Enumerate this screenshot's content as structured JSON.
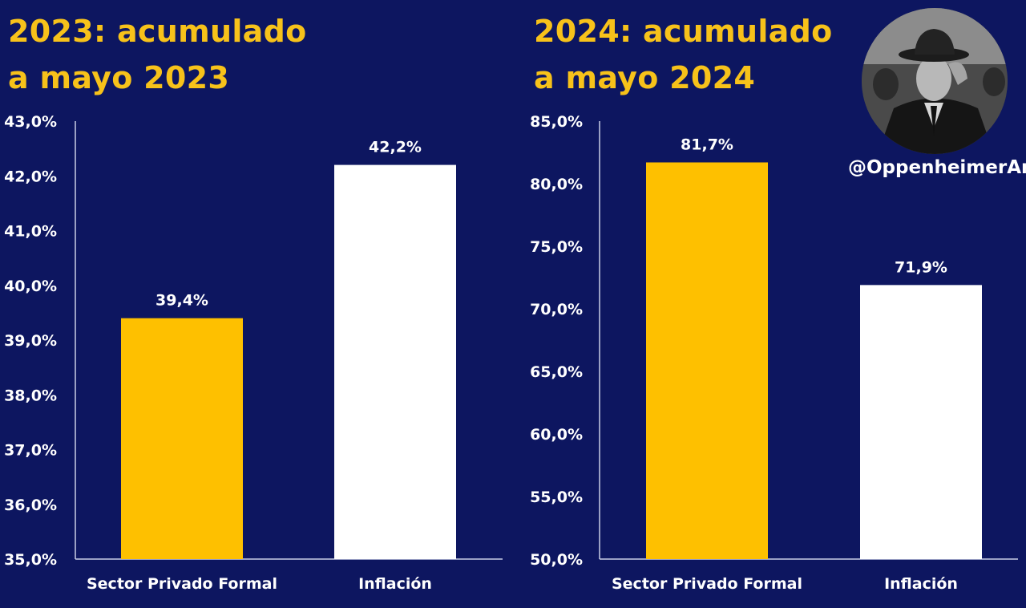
{
  "handle": "@OppenheimerAr",
  "colors": {
    "background": "#0d1660",
    "title": "#f7c21a",
    "bar_private": "#fec000",
    "bar_inflation": "#ffffff",
    "text": "#ffffff"
  },
  "chart_data": [
    {
      "type": "bar",
      "title": "2023: acumulado a mayo 2023",
      "title_lines": [
        "2023: acumulado",
        "a mayo 2023"
      ],
      "categories": [
        "Sector Privado Formal",
        "Inflación"
      ],
      "values": [
        39.4,
        42.2
      ],
      "value_labels": [
        "39,4%",
        "42,2%"
      ],
      "ylim": [
        35.0,
        43.0
      ],
      "yticks": [
        35.0,
        36.0,
        37.0,
        38.0,
        39.0,
        40.0,
        41.0,
        42.0,
        43.0
      ],
      "ytick_labels": [
        "35,0%",
        "36,0%",
        "37,0%",
        "38,0%",
        "39,0%",
        "40,0%",
        "41,0%",
        "42,0%",
        "43,0%"
      ],
      "grid": false,
      "legend": "none"
    },
    {
      "type": "bar",
      "title": "2024: acumulado a mayo 2024",
      "title_lines": [
        "2024: acumulado",
        "a mayo 2024"
      ],
      "categories": [
        "Sector Privado Formal",
        "Inflación"
      ],
      "values": [
        81.7,
        71.9
      ],
      "value_labels": [
        "81,7%",
        "71,9%"
      ],
      "ylim": [
        50.0,
        85.0
      ],
      "yticks": [
        50.0,
        55.0,
        60.0,
        65.0,
        70.0,
        75.0,
        80.0,
        85.0
      ],
      "ytick_labels": [
        "50,0%",
        "55,0%",
        "60,0%",
        "65,0%",
        "70,0%",
        "75,0%",
        "80,0%",
        "85,0%"
      ],
      "grid": false,
      "legend": "none"
    }
  ]
}
